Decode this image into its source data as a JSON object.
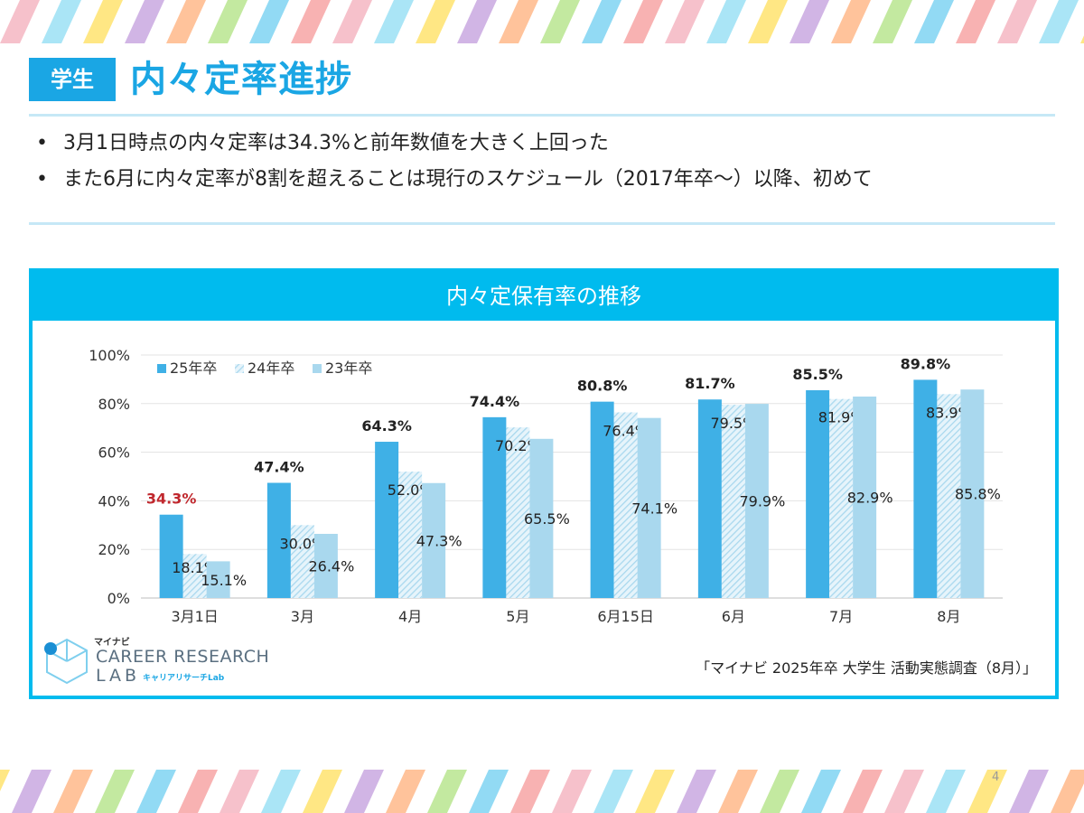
{
  "header": {
    "badge": "学生",
    "title": "内々定率進捗"
  },
  "bullets": [
    "3月1日時点の内々定率は34.3%と前年数値を大きく上回った",
    "また6月に内々定率が8割を超えることは現行のスケジュール（2017年卒～）以降、初めて"
  ],
  "panel": {
    "title": "内々定保有率の推移"
  },
  "chart_data": {
    "type": "bar",
    "title": "内々定保有率の推移",
    "categories": [
      "3月1日",
      "3月",
      "4月",
      "5月",
      "6月15日",
      "6月",
      "7月",
      "8月"
    ],
    "series": [
      {
        "name": "25年卒",
        "values": [
          34.3,
          47.4,
          64.3,
          74.4,
          80.8,
          81.7,
          85.5,
          89.8
        ],
        "color": "#3fb0e6",
        "pattern": "solid"
      },
      {
        "name": "24年卒",
        "values": [
          18.1,
          30.0,
          52.0,
          70.2,
          76.4,
          79.5,
          81.9,
          83.9
        ],
        "color": "#a9d8ee",
        "pattern": "hatched"
      },
      {
        "name": "23年卒",
        "values": [
          15.1,
          26.4,
          47.3,
          65.5,
          74.1,
          79.9,
          82.9,
          85.8
        ],
        "color": "#a9d8ee",
        "pattern": "solid"
      }
    ],
    "highlight_color": "#c0272d",
    "y_ticks": [
      "0%",
      "20%",
      "40%",
      "60%",
      "80%",
      "100%"
    ],
    "ylim": [
      0,
      100
    ],
    "grid": true,
    "legend": "top-left"
  },
  "logo": {
    "small": "マイナビ",
    "main": "CAREER RESEARCH",
    "lab": "LAB",
    "kana": "キャリアリサーチLab"
  },
  "source": "「マイナビ 2025年卒 大学生 活動実態調査（8月）」",
  "page_number": "4",
  "colors": {
    "accent": "#1aa6e4",
    "panel_border": "#00bbee"
  }
}
